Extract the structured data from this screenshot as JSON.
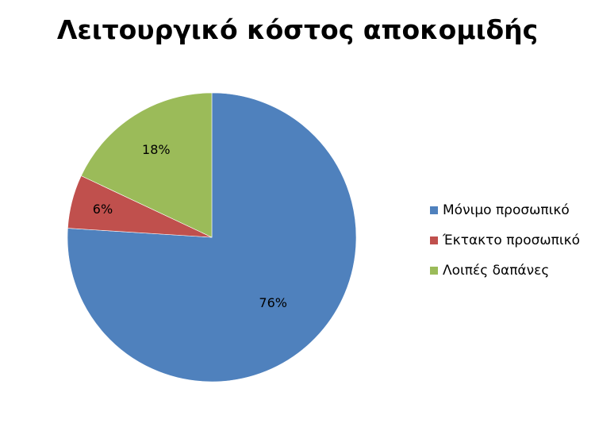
{
  "chart_data": {
    "type": "pie",
    "title": "Λειτουργικό κόστος αποκομιδής",
    "categories": [
      "Μόνιμο προσωπικό",
      "Έκτακτο προσωπικό",
      "Λοιπές δαπάνες"
    ],
    "values": [
      76,
      6,
      18
    ],
    "labels": [
      "76%",
      "6%",
      "18%"
    ],
    "colors": [
      "#4F81BD",
      "#C0504D",
      "#9BBB59"
    ],
    "start_angle": "12 o'clock, clockwise",
    "legend_position": "right"
  }
}
